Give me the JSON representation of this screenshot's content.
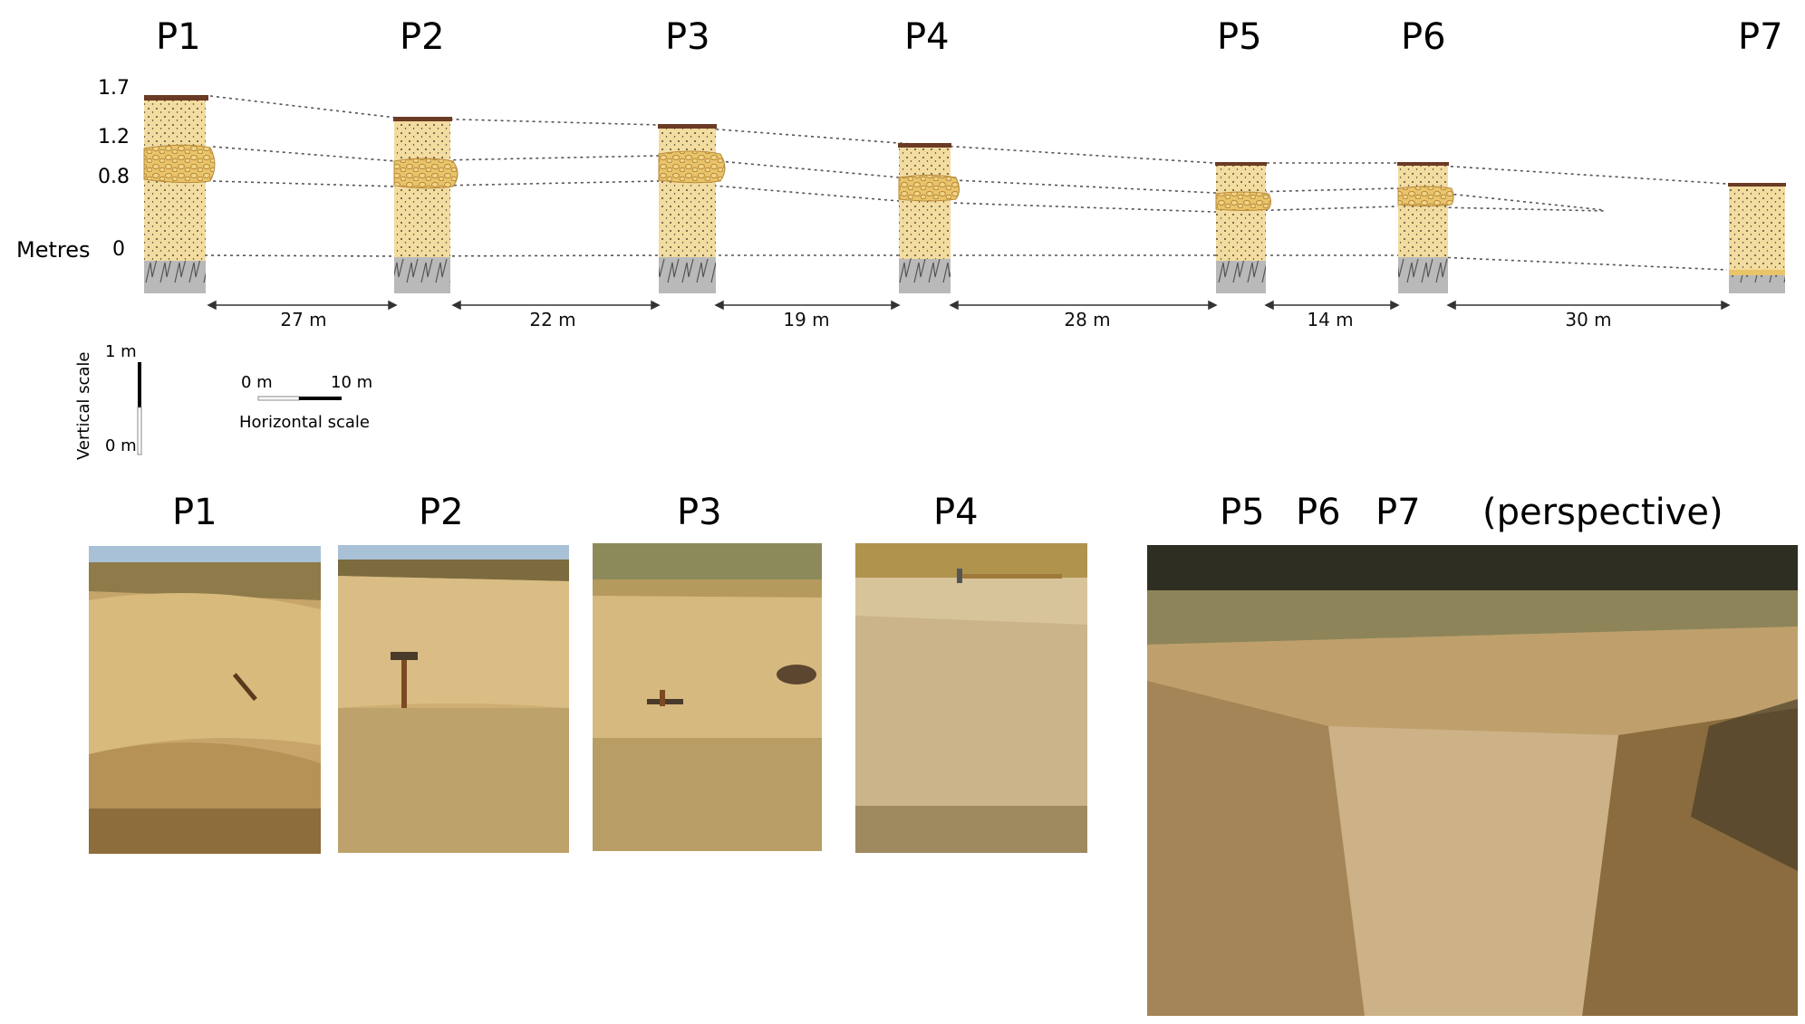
{
  "profiles": [
    {
      "id": "P1",
      "label": "P1"
    },
    {
      "id": "P2",
      "label": "P2"
    },
    {
      "id": "P3",
      "label": "P3"
    },
    {
      "id": "P4",
      "label": "P4"
    },
    {
      "id": "P5",
      "label": "P5"
    },
    {
      "id": "P6",
      "label": "P6"
    },
    {
      "id": "P7",
      "label": "P7"
    }
  ],
  "axis": {
    "title": "Metres",
    "ticks": [
      "1.7",
      "1.2",
      "0.8",
      "0"
    ]
  },
  "distances": [
    "27 m",
    "22 m",
    "19 m",
    "28 m",
    "14 m",
    "30 m"
  ],
  "vertical_scale": {
    "title": "Vertical scale",
    "top": "1 m",
    "bottom": "0 m"
  },
  "horizontal_scale": {
    "title": "Horizontal scale",
    "left": "0 m",
    "right": "10 m"
  },
  "photos": {
    "labels": [
      "P1",
      "P2",
      "P3",
      "P4"
    ],
    "perspective_labels": [
      "P5",
      "P6",
      "P7",
      "(perspective)"
    ]
  },
  "colors": {
    "sand": "#f3dc9f",
    "gravel": "#e9c46a",
    "gravel_edge": "#b8893a",
    "bedrock": "#b9b9b9",
    "topsoil": "#6b3b25",
    "guide_line": "#555555"
  }
}
